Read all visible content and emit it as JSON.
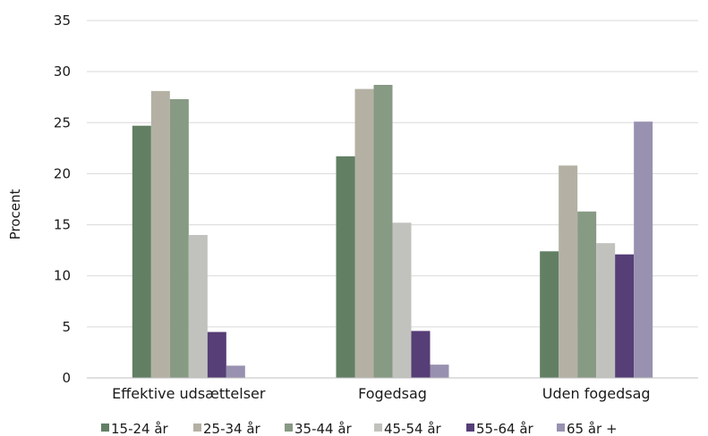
{
  "chart_data": {
    "type": "bar",
    "title": "",
    "xlabel": "",
    "ylabel": "Procent",
    "ylim": [
      0,
      35
    ],
    "yticks": [
      "0",
      "5",
      "10",
      "15",
      "20",
      "25",
      "30",
      "35"
    ],
    "grid": "horizontal",
    "legend_position": "bottom",
    "categories": [
      "Effektive udsættelser",
      "Fogedsag",
      "Uden fogedsag"
    ],
    "series": [
      {
        "name": "15-24 år",
        "color": "#627f64",
        "values": [
          24.7,
          21.7,
          12.4
        ]
      },
      {
        "name": "25-34 år",
        "color": "#b4b1a4",
        "values": [
          28.1,
          28.3,
          20.8
        ]
      },
      {
        "name": "35-44 år",
        "color": "#879a84",
        "values": [
          27.3,
          28.7,
          16.3
        ]
      },
      {
        "name": "45-54 år",
        "color": "#c1c2bd",
        "values": [
          14.0,
          15.2,
          13.2
        ]
      },
      {
        "name": "55-64 år",
        "color": "#563e76",
        "values": [
          4.5,
          4.6,
          12.1
        ]
      },
      {
        "name": "65 år +",
        "color": "#9891b0",
        "values": [
          1.2,
          1.3,
          25.1
        ]
      }
    ]
  }
}
